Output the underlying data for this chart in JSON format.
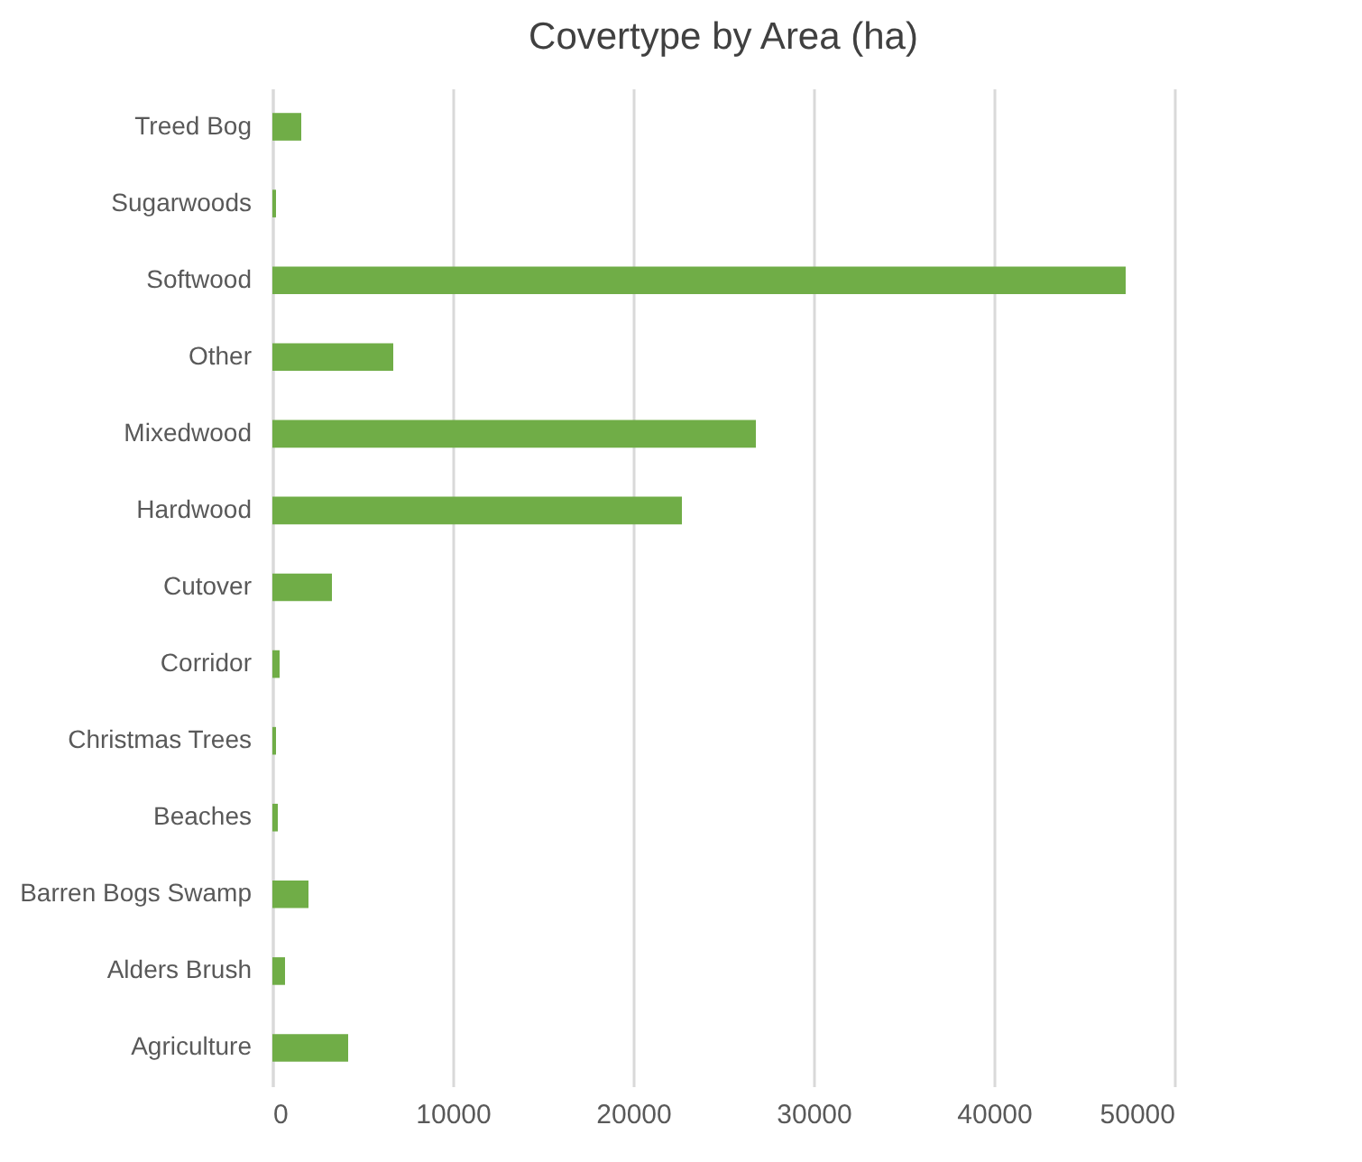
{
  "chart_data": {
    "type": "bar",
    "orientation": "horizontal",
    "title": "Covertype by Area (ha)",
    "categories": [
      "Treed Bog",
      "Sugarwoods",
      "Softwood",
      "Other",
      "Mixedwood",
      "Hardwood",
      "Cutover",
      "Corridor",
      "Christmas Trees",
      "Beaches",
      "Barren Bogs Swamp",
      "Alders Brush",
      "Agriculture"
    ],
    "values": [
      1600,
      200,
      47300,
      6700,
      26800,
      22700,
      3300,
      400,
      200,
      300,
      2000,
      700,
      4200
    ],
    "color": "#70ad47",
    "xlim": [
      0,
      50000
    ],
    "xticks": [
      0,
      10000,
      20000,
      30000,
      40000,
      50000
    ],
    "grid": "x"
  }
}
